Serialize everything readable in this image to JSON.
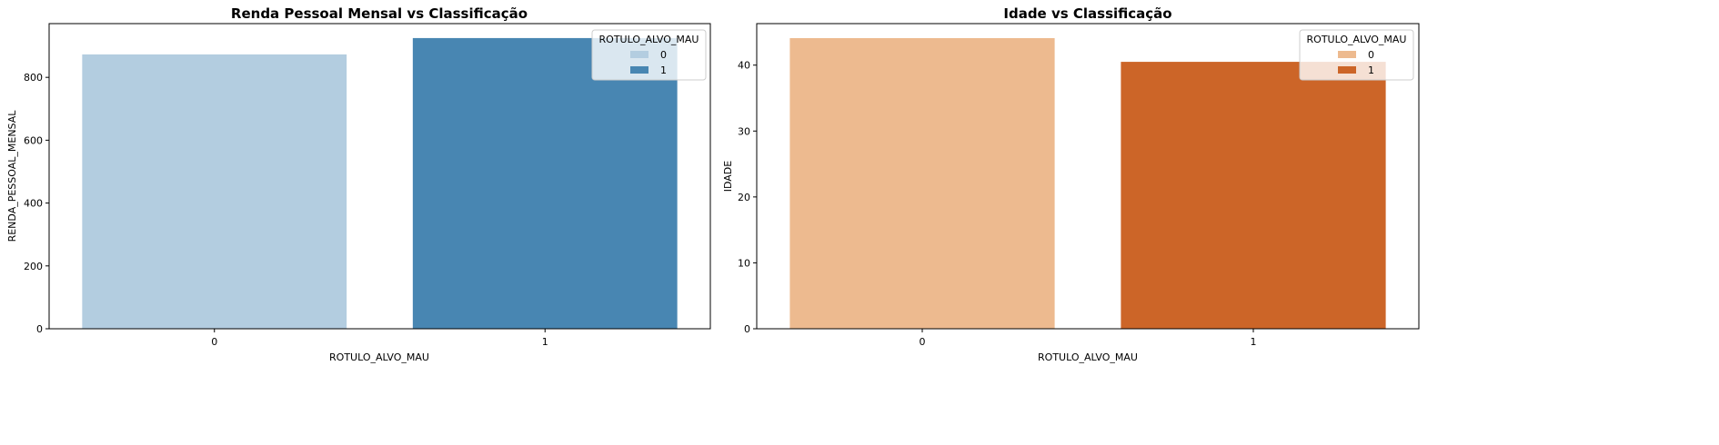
{
  "chart_data": [
    {
      "type": "bar",
      "title": "Renda Pessoal Mensal vs Classificação",
      "xlabel": "ROTULO_ALVO_MAU",
      "ylabel": "RENDA_PESSOAL_MENSAL",
      "categories": [
        "0",
        "1"
      ],
      "values": [
        873,
        925
      ],
      "colors": [
        "#b3cde0",
        "#4886b2"
      ],
      "ylim": [
        0,
        971
      ],
      "yticks": [
        0,
        200,
        400,
        600,
        800
      ],
      "grid": false,
      "legend": {
        "title": "ROTULO_ALVO_MAU",
        "position": "top-right",
        "entries": [
          "0",
          "1"
        ]
      }
    },
    {
      "type": "bar",
      "title": "Idade vs Classificação",
      "xlabel": "ROTULO_ALVO_MAU",
      "ylabel": "IDADE",
      "categories": [
        "0",
        "1"
      ],
      "values": [
        44.1,
        40.5
      ],
      "colors": [
        "#edba8f",
        "#cc6528"
      ],
      "ylim": [
        0,
        46.3
      ],
      "yticks": [
        0,
        10,
        20,
        30,
        40
      ],
      "grid": false,
      "legend": {
        "title": "ROTULO_ALVO_MAU",
        "position": "top-right",
        "entries": [
          "0",
          "1"
        ]
      }
    }
  ]
}
